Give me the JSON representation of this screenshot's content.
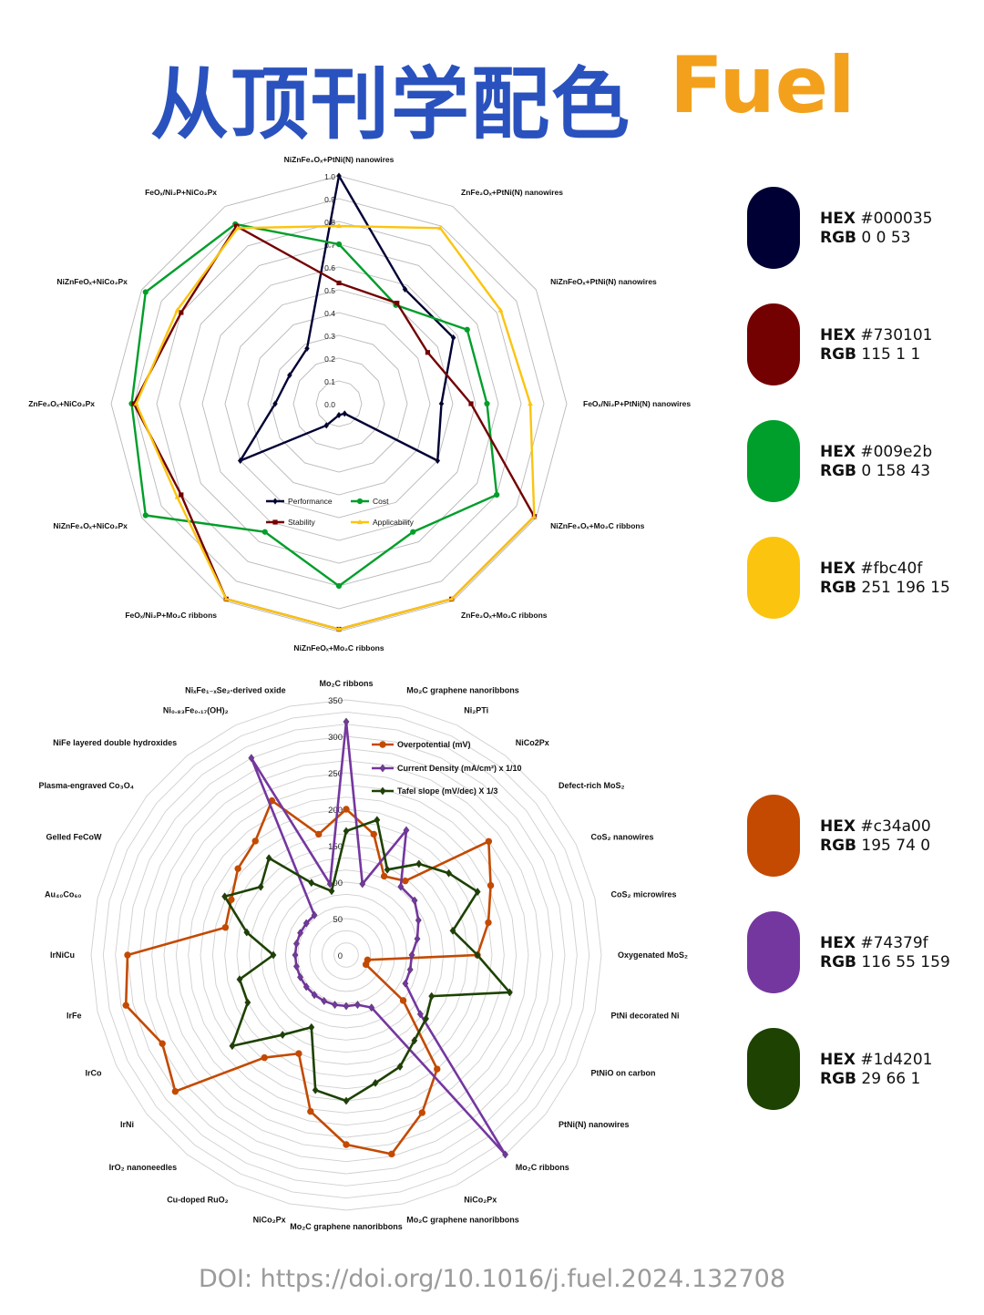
{
  "header": {
    "title_cn": "从顶刊学配色",
    "title_en": "Fuel"
  },
  "palettes": [
    {
      "hex_label": "HEX",
      "hex_value": "#000035",
      "rgb_label": "RGB",
      "rgb_value": "0 0 53",
      "color": "#000035"
    },
    {
      "hex_label": "HEX",
      "hex_value": "#730101",
      "rgb_label": "RGB",
      "rgb_value": "115 1 1",
      "color": "#730101"
    },
    {
      "hex_label": "HEX",
      "hex_value": "#009e2b",
      "rgb_label": "RGB",
      "rgb_value": "0 158 43",
      "color": "#009e2b"
    },
    {
      "hex_label": "HEX",
      "hex_value": "#fbc40f",
      "rgb_label": "RGB",
      "rgb_value": "251 196 15",
      "color": "#fbc40f"
    },
    {
      "hex_label": "HEX",
      "hex_value": "#c34a00",
      "rgb_label": "RGB",
      "rgb_value": "195 74 0",
      "color": "#c34a00"
    },
    {
      "hex_label": "HEX",
      "hex_value": "#74379f",
      "rgb_label": "RGB",
      "rgb_value": "116 55 159",
      "color": "#74379f"
    },
    {
      "hex_label": "HEX",
      "hex_value": "#1d4201",
      "rgb_label": "RGB",
      "rgb_value": "29 66 1",
      "color": "#1d4201"
    }
  ],
  "doi": "DOI: https://doi.org/10.1016/j.fuel.2024.132708",
  "chart_data": [
    {
      "type": "radar",
      "title": "",
      "categories": [
        "NiZnFe₄Oₓ+PtNi(N) nanowires",
        "ZnFe₂Oₓ+PtNi(N) nanowires",
        "NiZnFeOₓ+PtNi(N) nanowires",
        "FeOₓ/Ni₂P+PtNi(N) nanowires",
        "NiZnFe₄Oₓ+Mo₂C ribbons",
        "ZnFe₂Oₓ+Mo₂C ribbons",
        "NiZnFeOₓ+Mo₂C ribbons",
        "FeOₓ/Ni₂P+Mo₂C ribbons",
        "NiZnFe₄Oₓ+NiCo₂Px",
        "ZnFe₂Oₓ+NiCo₂Px",
        "NiZnFeOₓ+NiCo₂Px",
        "FeOₓ/Ni₂P+NiCo₂Px"
      ],
      "rlim": [
        0,
        1.0
      ],
      "ticks": [
        "0.0",
        "0.1",
        "0.2",
        "0.3",
        "0.4",
        "0.5",
        "0.6",
        "0.7",
        "0.8",
        "0.9",
        "1.0"
      ],
      "grid": "on",
      "legend_position": "center-bottom",
      "series": [
        {
          "name": "Performance",
          "color": "#000035",
          "marker": "diamond",
          "values": [
            1.0,
            0.58,
            0.58,
            0.45,
            0.5,
            0.05,
            0.05,
            0.11,
            0.5,
            0.28,
            0.25,
            0.28
          ]
        },
        {
          "name": "Cost",
          "color": "#009e2b",
          "marker": "circle",
          "values": [
            0.7,
            0.5,
            0.65,
            0.65,
            0.8,
            0.65,
            0.8,
            0.65,
            0.98,
            0.91,
            0.98,
            0.91
          ]
        },
        {
          "name": "Stability",
          "color": "#730101",
          "marker": "square",
          "values": [
            0.53,
            0.51,
            0.45,
            0.58,
            0.99,
            0.99,
            0.99,
            0.99,
            0.8,
            0.9,
            0.8,
            0.9
          ]
        },
        {
          "name": "Applicability",
          "color": "#fbc40f",
          "marker": "triangle",
          "values": [
            0.78,
            0.89,
            0.82,
            0.84,
            0.99,
            0.99,
            0.99,
            0.99,
            0.82,
            0.89,
            0.82,
            0.89
          ]
        }
      ]
    },
    {
      "type": "radar",
      "title": "",
      "categories": [
        "Mo₂C ribbons",
        "Mo₂C graphene nanoribbons",
        "Ni₂PTi",
        "NiCo2Px",
        "Defect-rich MoS₂",
        "CoS₂ nanowires",
        "CoS₂ microwires",
        "Oxygenated MoS₂",
        "PtNi decorated Ni",
        "PtNiO on carbon",
        "PtNi(N) nanowires",
        "Mo₂C ribbons",
        "NiCo₂Px",
        "Mo₂C graphene nanoribbons",
        "Mo₂C graphene nanoribbons",
        "NiCo₂Px",
        "Cu-doped RuO₂",
        "IrO₂ nanoneedles",
        "IrNi",
        "IrCo",
        "IrFe",
        "IrNiCu",
        "Au₄₀Co₆₀",
        "Gelled FeCoW",
        "Plasma-engraved Co₃O₄",
        "NiFe layered double hydroxides",
        "Ni₀.₈₃Fe₀.₁₇(OH)₂",
        "NiₓFe₁₋ₓSe₂-derived oxide"
      ],
      "rlim": [
        0,
        350
      ],
      "ticks": [
        "0",
        "50",
        "100",
        "150",
        "200",
        "250",
        "300",
        "350"
      ],
      "grid": "on",
      "legend_position": "top-right",
      "series": [
        {
          "name": "Overpotential (mV)",
          "color": "#c34a00",
          "marker": "circle",
          "values": [
            200,
            170,
            120,
            130,
            250,
            220,
            200,
            180,
            30,
            30,
            100,
            200,
            240,
            280,
            260,
            220,
            150,
            180,
            300,
            280,
            310,
            300,
            170,
            175,
            190,
            200,
            235,
            170
          ]
        },
        {
          "name": "Current Density (mA/cm²) x 1/10",
          "color": "#74379f",
          "marker": "diamond",
          "values": [
            320,
            100,
            190,
            120,
            120,
            110,
            100,
            90,
            90,
            90,
            130,
            350,
            80,
            70,
            70,
            70,
            70,
            70,
            70,
            70,
            70,
            70,
            70,
            70,
            70,
            70,
            300,
            100
          ]
        },
        {
          "name": "Tafel slope (mV/dec) X 1/3",
          "color": "#1d4201",
          "marker": "diamond",
          "values": [
            170,
            190,
            130,
            160,
            180,
            200,
            150,
            180,
            230,
            130,
            140,
            150,
            170,
            180,
            200,
            190,
            110,
            140,
            200,
            150,
            150,
            100,
            140,
            185,
            150,
            170,
            110,
            90
          ]
        }
      ]
    }
  ]
}
